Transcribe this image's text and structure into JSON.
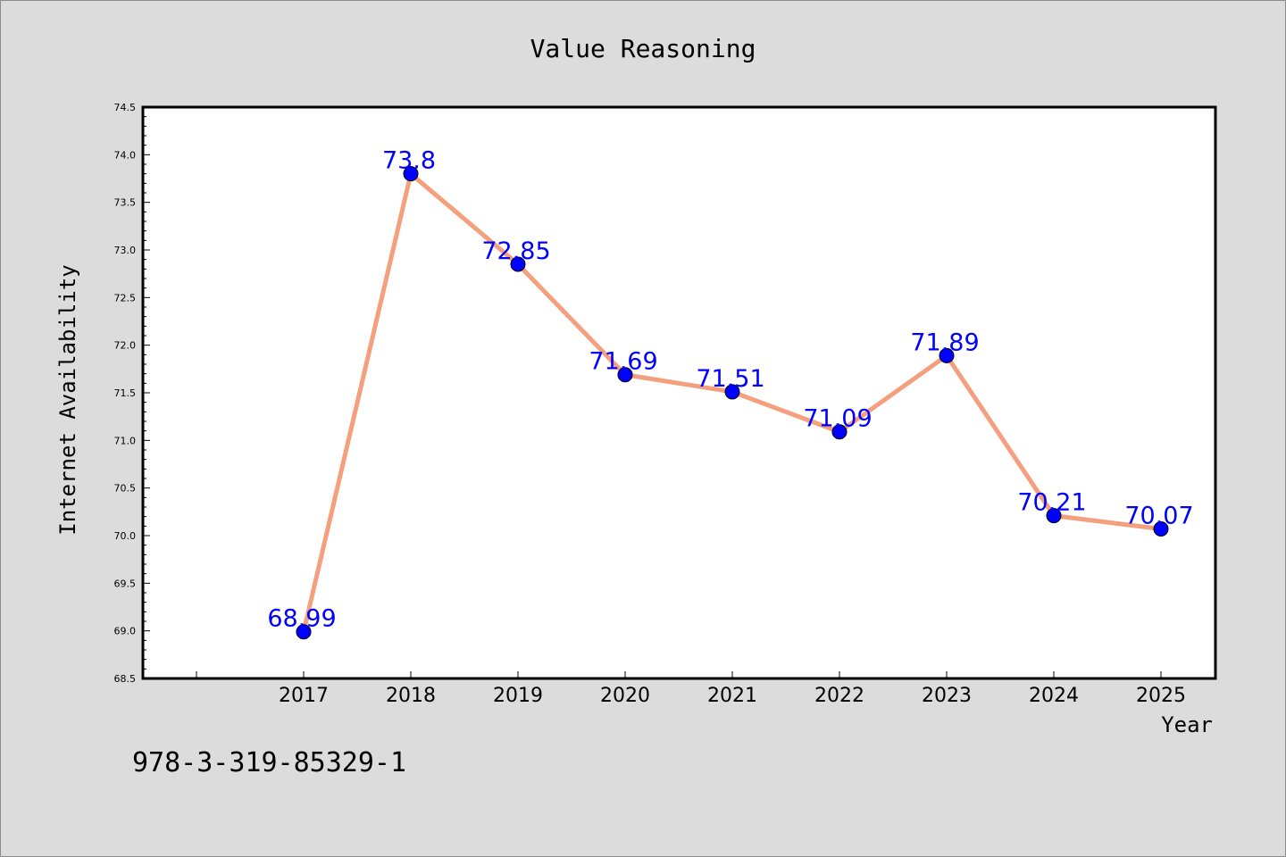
{
  "chart_data": {
    "type": "line",
    "title": "Value Reasoning",
    "xlabel": "Year",
    "ylabel": "Internet Availability",
    "categories": [
      "2017",
      "2018",
      "2019",
      "2020",
      "2021",
      "2022",
      "2023",
      "2024",
      "2025"
    ],
    "values": [
      68.99,
      73.8,
      72.85,
      71.69,
      71.51,
      71.09,
      71.89,
      70.21,
      70.07
    ],
    "data_labels": [
      "68.99",
      "73.8",
      "72.85",
      "71.69",
      "71.51",
      "71.09",
      "71.89",
      "70.21",
      "70.07"
    ],
    "ylim": [
      68.5,
      74.5
    ],
    "yticks": [
      "68.5",
      "69.0",
      "69.5",
      "70.0",
      "70.5",
      "71.0",
      "71.5",
      "72.0",
      "72.5",
      "73.0",
      "73.5",
      "74.0",
      "74.5"
    ],
    "grid": false,
    "line_color": "#f4a07e",
    "marker_color": "#0000ff",
    "label_color": "#0000ff"
  },
  "footer_code": "978-3-319-85329-1"
}
